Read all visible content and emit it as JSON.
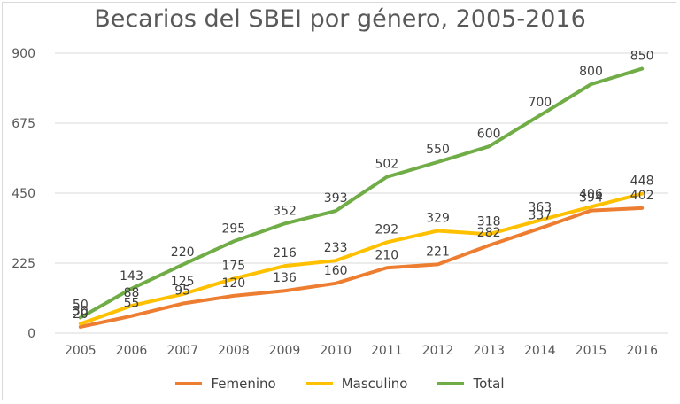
{
  "chart_data": {
    "type": "line",
    "title": "Becarios del SBEI por género, 2005-2016",
    "xlabel": "",
    "ylabel": "",
    "categories": [
      "2005",
      "2006",
      "2007",
      "2008",
      "2009",
      "2010",
      "2011",
      "2012",
      "2013",
      "2014",
      "2015",
      "2016"
    ],
    "ylim": [
      0,
      900
    ],
    "yticks": [
      "0",
      "225",
      "450",
      "675",
      "900"
    ],
    "grid": true,
    "legend": "bottom",
    "series": [
      {
        "name": "Femenino",
        "color": "#ed7d31",
        "values": [
          20,
          55,
          95,
          120,
          136,
          160,
          210,
          221,
          282,
          337,
          394,
          402
        ]
      },
      {
        "name": "Masculino",
        "color": "#ffc000",
        "values": [
          30,
          88,
          125,
          175,
          216,
          233,
          292,
          329,
          318,
          363,
          406,
          448
        ]
      },
      {
        "name": "Total",
        "color": "#70ad47",
        "values": [
          50,
          143,
          220,
          295,
          352,
          393,
          502,
          550,
          600,
          700,
          800,
          850
        ]
      }
    ]
  }
}
